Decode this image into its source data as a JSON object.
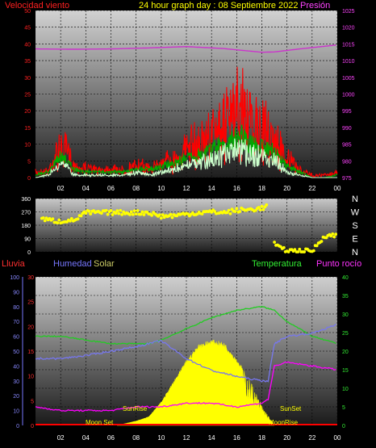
{
  "header": {
    "wind_label": "Velocidad viento",
    "title": "24 hour graph day : 08 Septiembre 2022",
    "pressure_label": "Presión"
  },
  "wind_chart": {
    "type": "line",
    "ylim_left": [
      0,
      50
    ],
    "left_ticks": [
      "0",
      "5",
      "10",
      "15",
      "20",
      "25",
      "30",
      "35",
      "40",
      "45",
      "50"
    ],
    "ylim_right": [
      975,
      1025
    ],
    "right_ticks": [
      "975",
      "980",
      "985",
      "990",
      "995",
      "1000",
      "1005",
      "1010",
      "1015",
      "1020",
      "1025"
    ],
    "x_ticks": [
      "02",
      "04",
      "06",
      "08",
      "10",
      "12",
      "14",
      "16",
      "18",
      "20",
      "22",
      "00"
    ],
    "series": [
      {
        "name": "Velocidad viento",
        "color": "#ff0000",
        "x": [
          0,
          1,
          1.5,
          2,
          2.5,
          3,
          4,
          5,
          6,
          7,
          8,
          9,
          10,
          11,
          12,
          13,
          14,
          15,
          16,
          16.5,
          17,
          18,
          19,
          20,
          21,
          22,
          23,
          24
        ],
        "values": [
          2,
          3,
          8,
          12,
          10,
          5,
          4,
          3,
          4,
          3,
          5,
          4,
          6,
          8,
          12,
          14,
          18,
          22,
          26,
          28,
          22,
          20,
          16,
          8,
          3,
          1,
          1,
          2
        ]
      },
      {
        "color": "#00aa00",
        "x": [
          0,
          1,
          1.5,
          2,
          2.5,
          3,
          4,
          5,
          6,
          7,
          8,
          9,
          10,
          11,
          12,
          13,
          14,
          15,
          16,
          16.5,
          17,
          18,
          19,
          20,
          21,
          22,
          23,
          24
        ],
        "values": [
          1,
          2,
          5,
          7,
          6,
          3,
          2,
          2,
          2,
          2,
          3,
          3,
          4,
          5,
          7,
          8,
          10,
          12,
          14,
          15,
          12,
          11,
          9,
          4,
          2,
          0,
          0,
          1
        ]
      },
      {
        "color": "#ccffcc",
        "x": [
          0,
          1,
          1.5,
          2,
          2.5,
          3,
          4,
          5,
          6,
          7,
          8,
          9,
          10,
          11,
          12,
          13,
          14,
          15,
          16,
          16.5,
          17,
          18,
          19,
          20,
          21,
          22,
          23,
          24
        ],
        "values": [
          0,
          1,
          3,
          5,
          4,
          1,
          1,
          1,
          1,
          1,
          2,
          1,
          2,
          3,
          5,
          6,
          7,
          9,
          10,
          11,
          9,
          8,
          7,
          2,
          1,
          0,
          0,
          0
        ]
      },
      {
        "name": "Presión",
        "color": "#cc33cc",
        "axis": "right",
        "x": [
          0,
          3,
          6,
          9,
          12,
          15,
          18,
          19,
          21,
          24
        ],
        "values": [
          1013.5,
          1013.4,
          1013.5,
          1013.8,
          1014.2,
          1013.6,
          1012.5,
          1012.6,
          1013.5,
          1014.7
        ]
      }
    ]
  },
  "dir_chart": {
    "type": "scatter",
    "ylim": [
      0,
      360
    ],
    "left_ticks": [
      "0",
      "90",
      "180",
      "270",
      "360"
    ],
    "compass": [
      "N",
      "W",
      "S",
      "E",
      "N"
    ],
    "x_ticks": [
      "02",
      "04",
      "06",
      "08",
      "10",
      "12",
      "14",
      "16",
      "18",
      "20",
      "22",
      "00"
    ],
    "series": [
      {
        "color": "#ffff00",
        "x": [
          0.5,
          1,
          1.5,
          2,
          2.5,
          3,
          4,
          5,
          6,
          7,
          8,
          9,
          10,
          11,
          12,
          13,
          14,
          15,
          16,
          17,
          18,
          18.5,
          19,
          19.5,
          20,
          21,
          22,
          23,
          24
        ],
        "values": [
          225,
          215,
          210,
          205,
          215,
          210,
          265,
          265,
          265,
          265,
          265,
          265,
          240,
          245,
          255,
          265,
          270,
          265,
          280,
          285,
          295,
          310,
          60,
          20,
          10,
          5,
          5,
          110,
          110
        ]
      }
    ]
  },
  "weather_chart": {
    "type": "line",
    "labels": {
      "rain": "Lluvia",
      "humidity": "Humedad",
      "solar": "Solar",
      "temperature": "Temperatura",
      "dewpoint": "Punto rocío"
    },
    "humidity_ticks": [
      "0",
      "10",
      "20",
      "30",
      "40",
      "50",
      "60",
      "70",
      "80",
      "90",
      "100"
    ],
    "rain_ticks": [
      "0",
      "5",
      "10",
      "15",
      "20",
      "25",
      "30"
    ],
    "temp_ticks": [
      "0",
      "5",
      "10",
      "15",
      "20",
      "25",
      "30",
      "35",
      "40"
    ],
    "ylim_humidity": [
      0,
      100
    ],
    "ylim_temp": [
      0,
      40
    ],
    "x_ticks": [
      "02",
      "04",
      "06",
      "08",
      "10",
      "12",
      "14",
      "16",
      "18",
      "20",
      "22",
      "00"
    ],
    "annotations": [
      "SunRise",
      "SunSet",
      "Moon Set",
      "MoonRise"
    ],
    "series": [
      {
        "name": "Temperatura",
        "color": "#22cc22",
        "x": [
          0,
          2,
          4,
          6,
          8,
          9,
          10,
          12,
          14,
          16,
          18,
          19,
          20,
          22,
          24
        ],
        "values": [
          24,
          24,
          23,
          22,
          22,
          22,
          23,
          26,
          29,
          31,
          32,
          31,
          28,
          24,
          22
        ]
      },
      {
        "name": "Humedad",
        "color": "#7777ee",
        "x": [
          0,
          2,
          4,
          6,
          8,
          9,
          10,
          12,
          14,
          16,
          18,
          18.5,
          19,
          20,
          22,
          24
        ],
        "values": [
          45,
          45,
          47,
          50,
          53,
          55,
          57,
          45,
          37,
          33,
          30,
          30,
          55,
          60,
          62,
          68
        ]
      },
      {
        "name": "Punto rocío",
        "color": "#ff00ff",
        "x": [
          0,
          2,
          4,
          6,
          8,
          10,
          12,
          14,
          16,
          18,
          18.5,
          19,
          20,
          22,
          24
        ],
        "values": [
          5,
          4,
          4,
          4,
          5,
          5,
          6,
          6,
          5,
          6,
          7,
          16,
          17,
          16,
          15
        ]
      },
      {
        "name": "Solar",
        "color": "#ffff00",
        "x": [
          6.5,
          8,
          9,
          10,
          11,
          12,
          13,
          14,
          15,
          16,
          17,
          18,
          19
        ],
        "values": [
          0,
          3,
          6,
          16,
          30,
          44,
          55,
          58,
          56,
          45,
          32,
          14,
          0
        ]
      },
      {
        "name": "Lluvia",
        "color": "#ff0000",
        "x": [
          0,
          24
        ],
        "values": [
          0,
          0
        ]
      }
    ]
  }
}
